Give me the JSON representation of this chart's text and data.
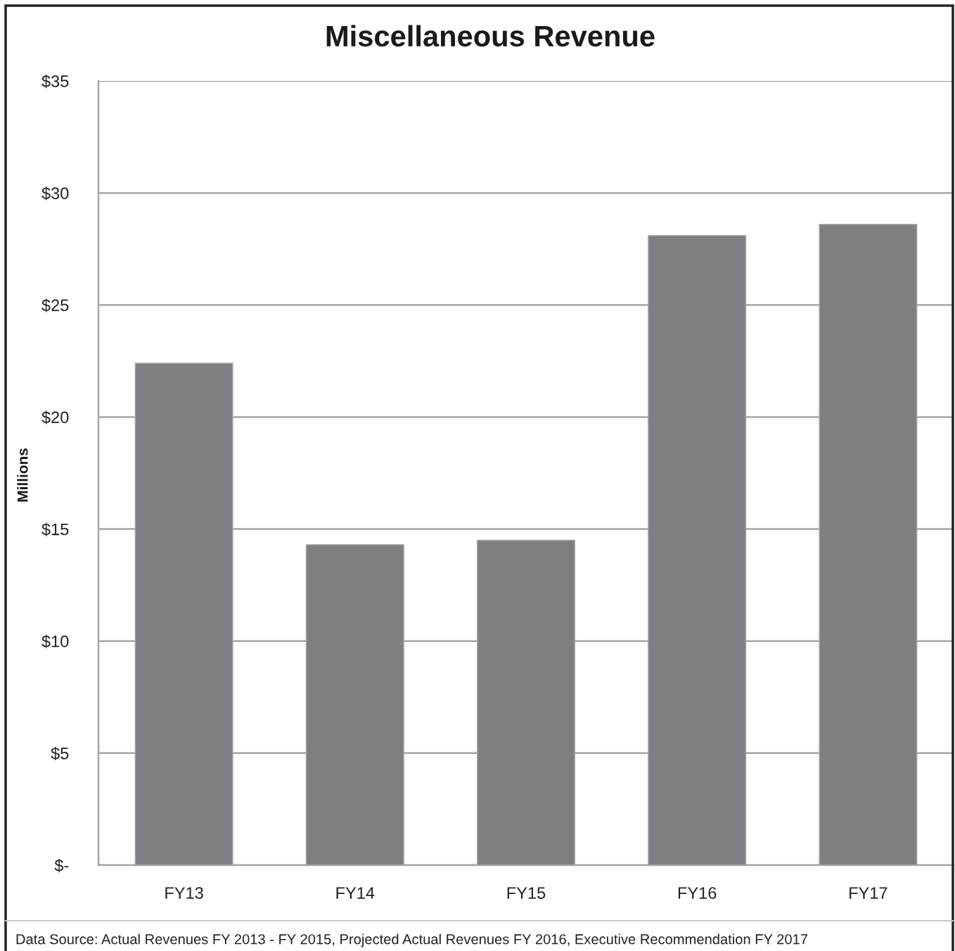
{
  "chart_data": {
    "type": "bar",
    "title": "Miscellaneous Revenue",
    "ylabel": "Millions",
    "categories": [
      "FY13",
      "FY14",
      "FY15",
      "FY16",
      "FY17"
    ],
    "values": [
      22.4,
      14.3,
      14.5,
      28.1,
      28.6
    ],
    "color": "#7f7f83",
    "ylim": [
      0,
      35
    ],
    "yticks": [
      {
        "value": 0,
        "label": "$-"
      },
      {
        "value": 5,
        "label": "$5"
      },
      {
        "value": 10,
        "label": "$10"
      },
      {
        "value": 15,
        "label": "$15"
      },
      {
        "value": 20,
        "label": "$20"
      },
      {
        "value": 25,
        "label": "$25"
      },
      {
        "value": 30,
        "label": "$30"
      },
      {
        "value": 35,
        "label": "$35"
      }
    ],
    "grid": "y",
    "annotations": [
      "Data Source: Actual Revenues FY 2013 - FY 2015, Projected Actual Revenues FY 2016, Executive Recommendation FY 2017"
    ]
  }
}
